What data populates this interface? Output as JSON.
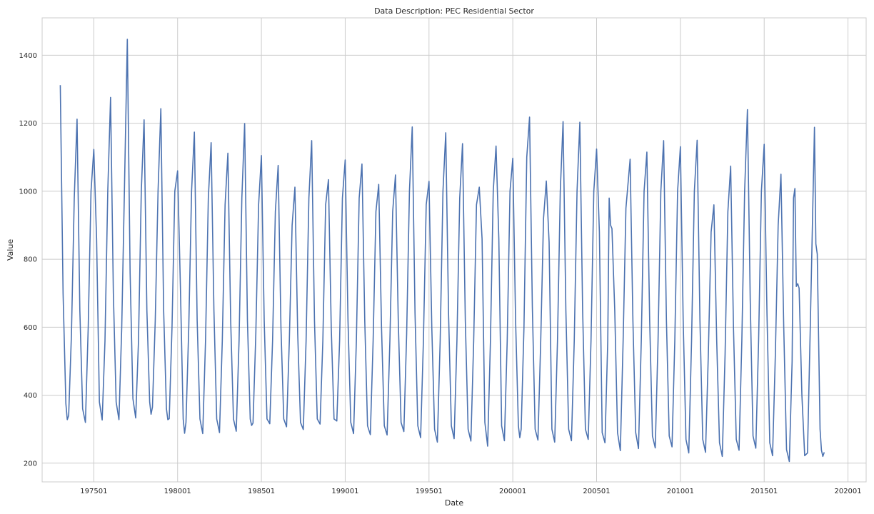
{
  "chart_data": {
    "type": "line",
    "title": "Data Description: PEC Residential Sector",
    "xlabel": "Date",
    "ylabel": "Value",
    "x_axis_kind": "yyyymm",
    "xlim": [
      "197112",
      "202102"
    ],
    "ylim": [
      145,
      1510
    ],
    "grid": true,
    "legend": "none",
    "line_color": "#4c72b0",
    "x_ticks": [
      "197501",
      "198001",
      "198501",
      "199001",
      "199501",
      "200001",
      "200501",
      "201001",
      "201501",
      "202001"
    ],
    "y_ticks": [
      200,
      400,
      600,
      800,
      1000,
      1200,
      1400
    ],
    "series": [
      {
        "values": [
          [
            "197301",
            1312
          ],
          [
            "197303",
            700
          ],
          [
            "197305",
            375
          ],
          [
            "197306",
            328
          ],
          [
            "197307",
            340
          ],
          [
            "197309",
            580
          ],
          [
            "197311",
            980
          ],
          [
            "197401",
            1212
          ],
          [
            "197403",
            650
          ],
          [
            "197405",
            360
          ],
          [
            "197407",
            320
          ],
          [
            "197409",
            600
          ],
          [
            "197411",
            1000
          ],
          [
            "197501",
            1123
          ],
          [
            "197503",
            860
          ],
          [
            "197505",
            380
          ],
          [
            "197507",
            327
          ],
          [
            "197509",
            560
          ],
          [
            "197511",
            1000
          ],
          [
            "197601",
            1276
          ],
          [
            "197603",
            700
          ],
          [
            "197605",
            380
          ],
          [
            "197607",
            328
          ],
          [
            "197609",
            600
          ],
          [
            "197611",
            1020
          ],
          [
            "197701",
            1447
          ],
          [
            "197703",
            760
          ],
          [
            "197705",
            390
          ],
          [
            "197707",
            333
          ],
          [
            "197709",
            560
          ],
          [
            "197711",
            1000
          ],
          [
            "197801",
            1210
          ],
          [
            "197803",
            650
          ],
          [
            "197805",
            380
          ],
          [
            "197806",
            344
          ],
          [
            "197807",
            365
          ],
          [
            "197809",
            620
          ],
          [
            "197811",
            1000
          ],
          [
            "197901",
            1243
          ],
          [
            "197903",
            650
          ],
          [
            "197905",
            360
          ],
          [
            "197906",
            328
          ],
          [
            "197907",
            331
          ],
          [
            "197909",
            600
          ],
          [
            "197911",
            1000
          ],
          [
            "198001",
            1060
          ],
          [
            "198003",
            720
          ],
          [
            "198005",
            330
          ],
          [
            "198006",
            288
          ],
          [
            "198007",
            320
          ],
          [
            "198009",
            600
          ],
          [
            "198011",
            1000
          ],
          [
            "198101",
            1174
          ],
          [
            "198103",
            620
          ],
          [
            "198105",
            330
          ],
          [
            "198107",
            287
          ],
          [
            "198109",
            560
          ],
          [
            "198111",
            980
          ],
          [
            "198201",
            1143
          ],
          [
            "198203",
            650
          ],
          [
            "198205",
            330
          ],
          [
            "198207",
            290
          ],
          [
            "198209",
            560
          ],
          [
            "198211",
            960
          ],
          [
            "198301",
            1112
          ],
          [
            "198303",
            620
          ],
          [
            "198305",
            330
          ],
          [
            "198307",
            294
          ],
          [
            "198309",
            560
          ],
          [
            "198311",
            980
          ],
          [
            "198401",
            1199
          ],
          [
            "198403",
            620
          ],
          [
            "198405",
            330
          ],
          [
            "198406",
            311
          ],
          [
            "198407",
            318
          ],
          [
            "198409",
            580
          ],
          [
            "198411",
            960
          ],
          [
            "198501",
            1105
          ],
          [
            "198503",
            620
          ],
          [
            "198505",
            330
          ],
          [
            "198507",
            316
          ],
          [
            "198509",
            560
          ],
          [
            "198511",
            940
          ],
          [
            "198601",
            1076
          ],
          [
            "198603",
            600
          ],
          [
            "198605",
            330
          ],
          [
            "198607",
            307
          ],
          [
            "198609",
            560
          ],
          [
            "198611",
            900
          ],
          [
            "198701",
            1012
          ],
          [
            "198703",
            580
          ],
          [
            "198705",
            320
          ],
          [
            "198707",
            299
          ],
          [
            "198709",
            560
          ],
          [
            "198711",
            980
          ],
          [
            "198801",
            1149
          ],
          [
            "198803",
            620
          ],
          [
            "198805",
            330
          ],
          [
            "198807",
            315
          ],
          [
            "198809",
            560
          ],
          [
            "198811",
            960
          ],
          [
            "198901",
            1034
          ],
          [
            "198903",
            600
          ],
          [
            "198905",
            330
          ],
          [
            "198907",
            324
          ],
          [
            "198909",
            560
          ],
          [
            "198911",
            980
          ],
          [
            "199001",
            1092
          ],
          [
            "199003",
            620
          ],
          [
            "199005",
            320
          ],
          [
            "199007",
            287
          ],
          [
            "199009",
            560
          ],
          [
            "199011",
            980
          ],
          [
            "199101",
            1080
          ],
          [
            "199103",
            620
          ],
          [
            "199105",
            310
          ],
          [
            "199107",
            284
          ],
          [
            "199109",
            560
          ],
          [
            "199111",
            940
          ],
          [
            "199201",
            1020
          ],
          [
            "199203",
            600
          ],
          [
            "199205",
            310
          ],
          [
            "199207",
            283
          ],
          [
            "199209",
            560
          ],
          [
            "199211",
            940
          ],
          [
            "199301",
            1048
          ],
          [
            "199303",
            620
          ],
          [
            "199305",
            320
          ],
          [
            "199307",
            293
          ],
          [
            "199309",
            580
          ],
          [
            "199311",
            1000
          ],
          [
            "199401",
            1189
          ],
          [
            "199403",
            640
          ],
          [
            "199405",
            310
          ],
          [
            "199407",
            275
          ],
          [
            "199409",
            560
          ],
          [
            "199411",
            960
          ],
          [
            "199501",
            1029
          ],
          [
            "199503",
            600
          ],
          [
            "199505",
            300
          ],
          [
            "199507",
            262
          ],
          [
            "199509",
            560
          ],
          [
            "199511",
            1000
          ],
          [
            "199601",
            1172
          ],
          [
            "199603",
            640
          ],
          [
            "199605",
            310
          ],
          [
            "199607",
            272
          ],
          [
            "199609",
            560
          ],
          [
            "199611",
            980
          ],
          [
            "199701",
            1140
          ],
          [
            "199703",
            620
          ],
          [
            "199705",
            300
          ],
          [
            "199707",
            265
          ],
          [
            "199709",
            560
          ],
          [
            "199711",
            960
          ],
          [
            "199801",
            1012
          ],
          [
            "199803",
            860
          ],
          [
            "199805",
            320
          ],
          [
            "199807",
            250
          ],
          [
            "199809",
            560
          ],
          [
            "199811",
            1000
          ],
          [
            "199901",
            1133
          ],
          [
            "199903",
            860
          ],
          [
            "199905",
            310
          ],
          [
            "199907",
            266
          ],
          [
            "199909",
            560
          ],
          [
            "199911",
            1000
          ],
          [
            "200001",
            1097
          ],
          [
            "200003",
            620
          ],
          [
            "200005",
            310
          ],
          [
            "200006",
            275
          ],
          [
            "200007",
            300
          ],
          [
            "200009",
            600
          ],
          [
            "200011",
            1100
          ],
          [
            "200101",
            1218
          ],
          [
            "200103",
            660
          ],
          [
            "200105",
            300
          ],
          [
            "200107",
            268
          ],
          [
            "200109",
            560
          ],
          [
            "200111",
            920
          ],
          [
            "200201",
            1030
          ],
          [
            "200203",
            850
          ],
          [
            "200205",
            300
          ],
          [
            "200207",
            262
          ],
          [
            "200209",
            560
          ],
          [
            "200211",
            1000
          ],
          [
            "200301",
            1205
          ],
          [
            "200303",
            650
          ],
          [
            "200305",
            300
          ],
          [
            "200307",
            266
          ],
          [
            "200309",
            560
          ],
          [
            "200311",
            1000
          ],
          [
            "200401",
            1203
          ],
          [
            "200403",
            650
          ],
          [
            "200405",
            300
          ],
          [
            "200407",
            270
          ],
          [
            "200409",
            560
          ],
          [
            "200411",
            1000
          ],
          [
            "200501",
            1124
          ],
          [
            "200503",
            880
          ],
          [
            "200505",
            290
          ],
          [
            "200507",
            260
          ],
          [
            "200509",
            560
          ],
          [
            "200510",
            980
          ],
          [
            "200511",
            900
          ],
          [
            "200512",
            890
          ],
          [
            "200602",
            650
          ],
          [
            "200604",
            290
          ],
          [
            "200606",
            237
          ],
          [
            "200608",
            560
          ],
          [
            "200610",
            950
          ],
          [
            "200701",
            1094
          ],
          [
            "200703",
            620
          ],
          [
            "200705",
            290
          ],
          [
            "200707",
            243
          ],
          [
            "200709",
            560
          ],
          [
            "200711",
            1000
          ],
          [
            "200801",
            1115
          ],
          [
            "200803",
            620
          ],
          [
            "200805",
            280
          ],
          [
            "200807",
            245
          ],
          [
            "200809",
            560
          ],
          [
            "200811",
            1000
          ],
          [
            "200901",
            1149
          ],
          [
            "200903",
            620
          ],
          [
            "200905",
            280
          ],
          [
            "200907",
            248
          ],
          [
            "200909",
            560
          ],
          [
            "200911",
            1000
          ],
          [
            "201001",
            1131
          ],
          [
            "201003",
            620
          ],
          [
            "201005",
            270
          ],
          [
            "201007",
            230
          ],
          [
            "201009",
            560
          ],
          [
            "201011",
            1000
          ],
          [
            "201101",
            1150
          ],
          [
            "201103",
            620
          ],
          [
            "201105",
            270
          ],
          [
            "201107",
            232
          ],
          [
            "201109",
            520
          ],
          [
            "201111",
            880
          ],
          [
            "201201",
            960
          ],
          [
            "201203",
            560
          ],
          [
            "201205",
            260
          ],
          [
            "201207",
            220
          ],
          [
            "201209",
            520
          ],
          [
            "201211",
            940
          ],
          [
            "201301",
            1074
          ],
          [
            "201303",
            600
          ],
          [
            "201305",
            270
          ],
          [
            "201307",
            238
          ],
          [
            "201309",
            560
          ],
          [
            "201311",
            1000
          ],
          [
            "201401",
            1240
          ],
          [
            "201403",
            680
          ],
          [
            "201405",
            280
          ],
          [
            "201407",
            244
          ],
          [
            "201409",
            560
          ],
          [
            "201411",
            1000
          ],
          [
            "201501",
            1138
          ],
          [
            "201503",
            640
          ],
          [
            "201505",
            260
          ],
          [
            "201507",
            222
          ],
          [
            "201509",
            520
          ],
          [
            "201511",
            900
          ],
          [
            "201601",
            1050
          ],
          [
            "201603",
            600
          ],
          [
            "201605",
            240
          ],
          [
            "201607",
            205
          ],
          [
            "201609",
            500
          ],
          [
            "201610",
            980
          ],
          [
            "201611",
            1008
          ],
          [
            "201612",
            720
          ],
          [
            "201701",
            728
          ],
          [
            "201702",
            715
          ],
          [
            "201704",
            400
          ],
          [
            "201706",
            222
          ],
          [
            "201708",
            230
          ],
          [
            "201710",
            600
          ],
          [
            "201801",
            1188
          ],
          [
            "201802",
            845
          ],
          [
            "201803",
            815
          ],
          [
            "201805",
            300
          ],
          [
            "201806",
            238
          ],
          [
            "201807",
            220
          ],
          [
            "201808",
            232
          ]
        ]
      }
    ]
  }
}
